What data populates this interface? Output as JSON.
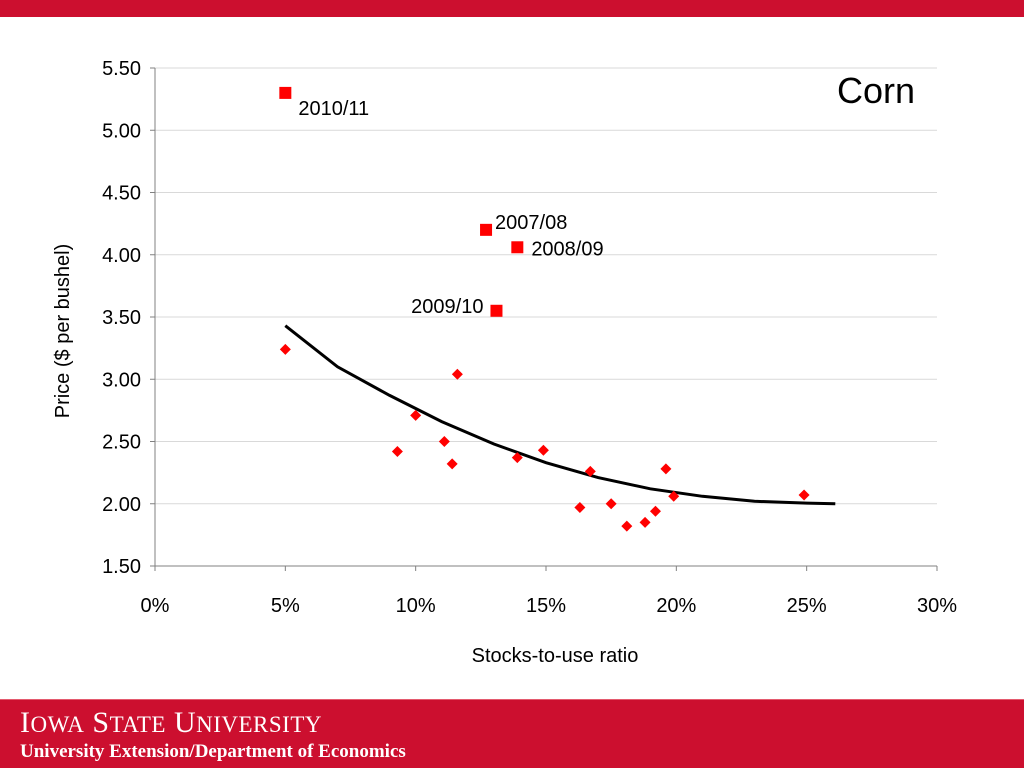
{
  "footer": {
    "university": "Iowa State University",
    "department": "University Extension/Department of Economics"
  },
  "colors": {
    "brand_red": "#cc0f2f",
    "marker_red": "#ff0000",
    "trend_line": "#000000",
    "grid": "#d9d9d9"
  },
  "chart_data": {
    "type": "scatter",
    "title": "Corn",
    "xlabel": "Stocks-to-use ratio",
    "ylabel": "Price ($ per bushel)",
    "xlim": [
      0,
      30
    ],
    "ylim": [
      1.5,
      5.5
    ],
    "x_ticks": [
      "0%",
      "5%",
      "10%",
      "15%",
      "20%",
      "25%",
      "30%"
    ],
    "y_ticks": [
      "5.50",
      "5.00",
      "4.50",
      "4.00",
      "3.50",
      "3.00",
      "2.50",
      "2.00",
      "1.50"
    ],
    "grid": "horizontal",
    "legend": "none",
    "series": [
      {
        "marker": "diamond",
        "points": [
          {
            "x": 5.0,
            "y": 3.24
          },
          {
            "x": 9.3,
            "y": 2.42
          },
          {
            "x": 10.0,
            "y": 2.71
          },
          {
            "x": 11.1,
            "y": 2.5
          },
          {
            "x": 11.4,
            "y": 2.32
          },
          {
            "x": 11.6,
            "y": 3.04
          },
          {
            "x": 13.9,
            "y": 2.37
          },
          {
            "x": 14.9,
            "y": 2.43
          },
          {
            "x": 16.3,
            "y": 1.97
          },
          {
            "x": 16.7,
            "y": 2.26
          },
          {
            "x": 17.5,
            "y": 2.0
          },
          {
            "x": 18.1,
            "y": 1.82
          },
          {
            "x": 18.8,
            "y": 1.85
          },
          {
            "x": 19.2,
            "y": 1.94
          },
          {
            "x": 19.6,
            "y": 2.28
          },
          {
            "x": 19.9,
            "y": 2.06
          },
          {
            "x": 24.9,
            "y": 2.07
          }
        ]
      },
      {
        "marker": "square",
        "points": [
          {
            "x": 5.0,
            "y": 5.3,
            "label": "2010/11"
          },
          {
            "x": 12.7,
            "y": 4.2,
            "label": "2007/08"
          },
          {
            "x": 13.9,
            "y": 4.06,
            "label": "2008/09"
          },
          {
            "x": 13.1,
            "y": 3.55,
            "label": "2009/10"
          }
        ]
      }
    ],
    "trendline": [
      {
        "x": 5.0,
        "y": 3.43
      },
      {
        "x": 7.0,
        "y": 3.1
      },
      {
        "x": 9.0,
        "y": 2.87
      },
      {
        "x": 11.0,
        "y": 2.66
      },
      {
        "x": 13.0,
        "y": 2.48
      },
      {
        "x": 15.0,
        "y": 2.33
      },
      {
        "x": 17.0,
        "y": 2.21
      },
      {
        "x": 19.0,
        "y": 2.12
      },
      {
        "x": 21.0,
        "y": 2.06
      },
      {
        "x": 23.0,
        "y": 2.02
      },
      {
        "x": 25.0,
        "y": 2.005
      },
      {
        "x": 26.1,
        "y": 2.0
      }
    ]
  }
}
